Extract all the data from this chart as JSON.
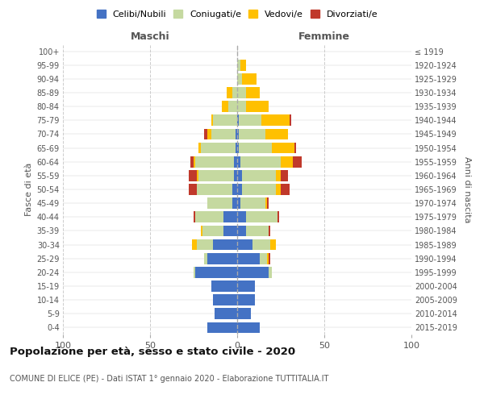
{
  "age_groups": [
    "0-4",
    "5-9",
    "10-14",
    "15-19",
    "20-24",
    "25-29",
    "30-34",
    "35-39",
    "40-44",
    "45-49",
    "50-54",
    "55-59",
    "60-64",
    "65-69",
    "70-74",
    "75-79",
    "80-84",
    "85-89",
    "90-94",
    "95-99",
    "100+"
  ],
  "birth_years": [
    "2015-2019",
    "2010-2014",
    "2005-2009",
    "2000-2004",
    "1995-1999",
    "1990-1994",
    "1985-1989",
    "1980-1984",
    "1975-1979",
    "1970-1974",
    "1965-1969",
    "1960-1964",
    "1955-1959",
    "1950-1954",
    "1945-1949",
    "1940-1944",
    "1935-1939",
    "1930-1934",
    "1925-1929",
    "1920-1924",
    "≤ 1919"
  ],
  "males": {
    "celibi": [
      17,
      13,
      14,
      15,
      24,
      17,
      14,
      8,
      8,
      3,
      3,
      2,
      2,
      1,
      1,
      0,
      0,
      0,
      0,
      0,
      0
    ],
    "coniugati": [
      0,
      0,
      0,
      0,
      1,
      2,
      9,
      12,
      16,
      14,
      20,
      20,
      22,
      20,
      14,
      14,
      5,
      3,
      0,
      0,
      0
    ],
    "vedovi": [
      0,
      0,
      0,
      0,
      0,
      0,
      3,
      1,
      0,
      0,
      0,
      1,
      1,
      1,
      2,
      1,
      4,
      3,
      0,
      0,
      0
    ],
    "divorziati": [
      0,
      0,
      0,
      0,
      0,
      0,
      0,
      0,
      1,
      0,
      5,
      5,
      2,
      0,
      2,
      0,
      0,
      0,
      0,
      0,
      0
    ]
  },
  "females": {
    "nubili": [
      13,
      8,
      10,
      10,
      18,
      13,
      9,
      5,
      5,
      2,
      3,
      3,
      2,
      1,
      1,
      1,
      0,
      0,
      0,
      0,
      0
    ],
    "coniugate": [
      0,
      0,
      0,
      0,
      2,
      4,
      10,
      13,
      18,
      14,
      19,
      19,
      23,
      19,
      15,
      13,
      5,
      5,
      3,
      2,
      0
    ],
    "vedove": [
      0,
      0,
      0,
      0,
      0,
      1,
      3,
      0,
      0,
      1,
      3,
      3,
      7,
      13,
      13,
      16,
      13,
      8,
      8,
      3,
      0
    ],
    "divorziate": [
      0,
      0,
      0,
      0,
      0,
      1,
      0,
      1,
      1,
      1,
      5,
      4,
      5,
      1,
      0,
      1,
      0,
      0,
      0,
      0,
      0
    ]
  },
  "colors": {
    "celibi": "#4472c4",
    "coniugati": "#c5d9a0",
    "vedovi": "#ffc000",
    "divorziati": "#c0392b"
  },
  "title": "Popolazione per età, sesso e stato civile - 2020",
  "subtitle": "COMUNE DI ELICE (PE) - Dati ISTAT 1° gennaio 2020 - Elaborazione TUTTITALIA.IT",
  "xlabel_left": "Maschi",
  "xlabel_right": "Femmine",
  "ylabel_left": "Fasce di età",
  "ylabel_right": "Anni di nascita",
  "xlim": 100,
  "bg_color": "#ffffff",
  "grid_color": "#cccccc",
  "legend_labels": [
    "Celibi/Nubili",
    "Coniugati/e",
    "Vedovi/e",
    "Divorziati/e"
  ]
}
